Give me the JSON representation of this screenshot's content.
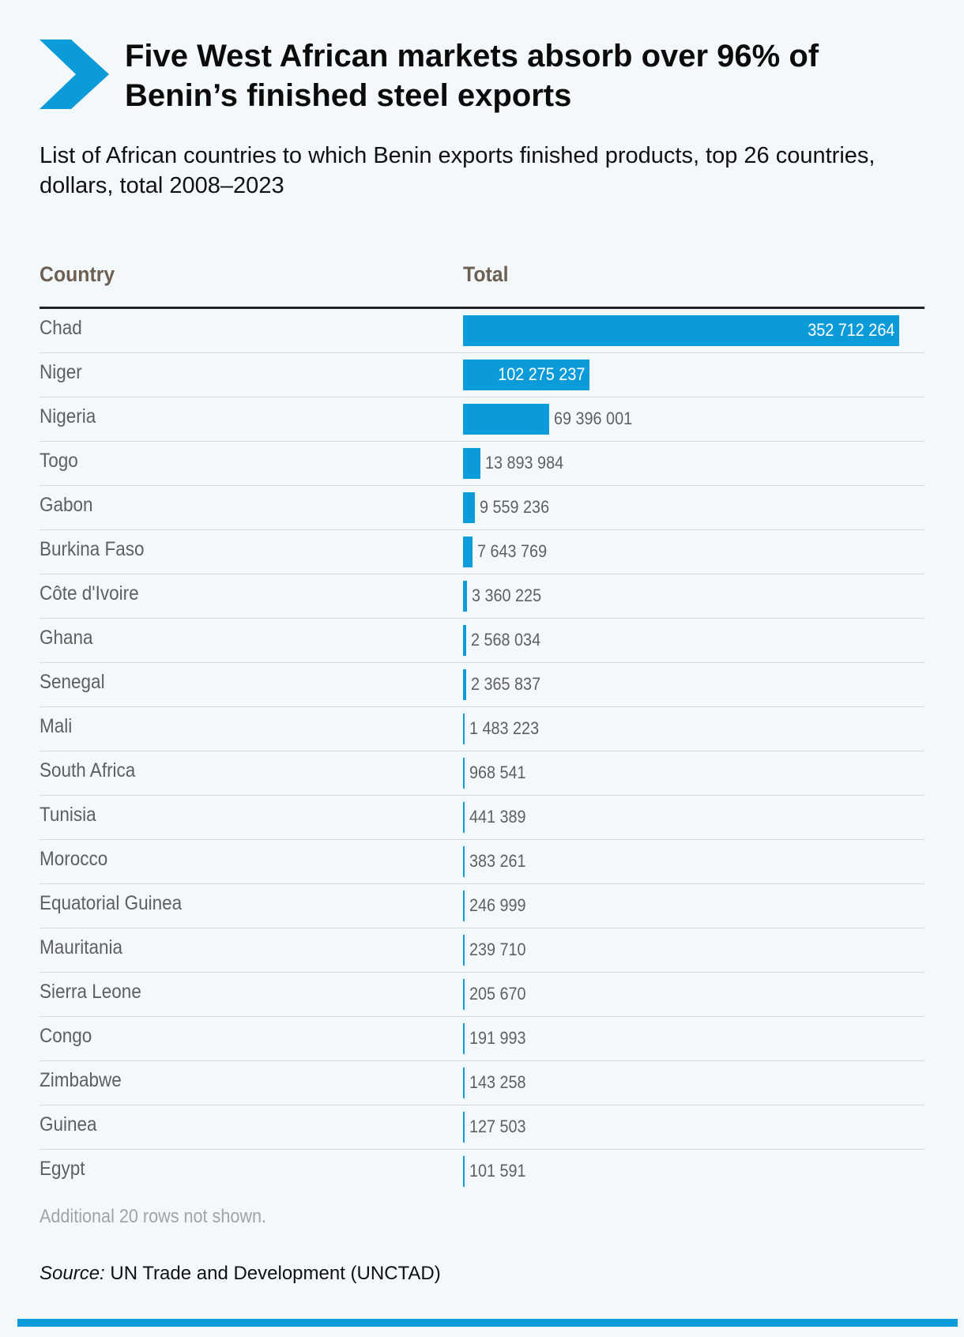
{
  "title": "Five West African markets absorb over 96% of Benin’s finished steel exports",
  "subtitle": "List of African countries to which Benin exports finished products, top 26 countries, dollars, total 2008–2023",
  "colors": {
    "accent": "#0a9bd8",
    "header_text": "#6e5f53",
    "row_text": "#5f5f5f",
    "note_text": "#a3a3a3"
  },
  "chart_data": {
    "type": "bar",
    "orientation": "horizontal",
    "columns": [
      "Country",
      "Total"
    ],
    "categories": [
      "Chad",
      "Niger",
      "Nigeria",
      "Togo",
      "Gabon",
      "Burkina Faso",
      "Côte d'Ivoire",
      "Ghana",
      "Senegal",
      "Mali",
      "South Africa",
      "Tunisia",
      "Morocco",
      "Equatorial Guinea",
      "Mauritania",
      "Sierra Leone",
      "Congo",
      "Zimbabwe",
      "Guinea",
      "Egypt"
    ],
    "values": [
      352712264,
      102275237,
      69396001,
      13893984,
      9559236,
      7643769,
      3360225,
      2568034,
      2365837,
      1483223,
      968541,
      441389,
      383261,
      246999,
      239710,
      205670,
      191993,
      143258,
      127503,
      101591
    ],
    "labels": [
      "352 712 264",
      "102 275 237",
      "69 396 001",
      "13 893 984",
      "9 559 236",
      "7 643 769",
      "3 360 225",
      "2 568 034",
      "2 365 837",
      "1 483 223",
      "968 541",
      "441 389",
      "383 261",
      "246 999",
      "239 710",
      "205 670",
      "191 993",
      "143 258",
      "127 503",
      "101 591"
    ],
    "xlim": [
      0,
      352712264
    ],
    "grid": false,
    "legend": "none"
  },
  "note": "Additional 20 rows not shown.",
  "source": {
    "label": "Source:",
    "text": " UN Trade and Development (UNCTAD)"
  }
}
